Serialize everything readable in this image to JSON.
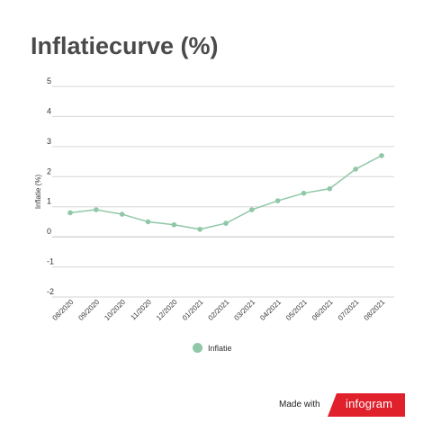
{
  "chart_data": {
    "type": "line",
    "title": "Inflatiecurve (%)",
    "ylabel": "Inflatie (%)",
    "xlabel": "",
    "categories": [
      "08/2020",
      "09/2020",
      "10/2020",
      "11/2020",
      "12/2020",
      "01/2021",
      "02/2021",
      "03/2021",
      "04/2021",
      "05/2021",
      "06/2021",
      "07/2021",
      "08/2021"
    ],
    "series": [
      {
        "name": "Inflatie",
        "values": [
          0.8,
          0.9,
          0.75,
          0.5,
          0.4,
          0.25,
          0.45,
          0.9,
          1.2,
          1.45,
          1.6,
          2.25,
          2.7
        ],
        "color": "#8fc7a7"
      }
    ],
    "yticks": [
      5,
      4,
      3,
      2,
      1,
      0,
      -1,
      -2
    ],
    "ylim": [
      -2,
      5
    ],
    "grid": true,
    "legend_position": "bottom"
  },
  "footer": {
    "made_with": "Made with",
    "brand": "infogram",
    "brand_color": "#e0202a"
  }
}
